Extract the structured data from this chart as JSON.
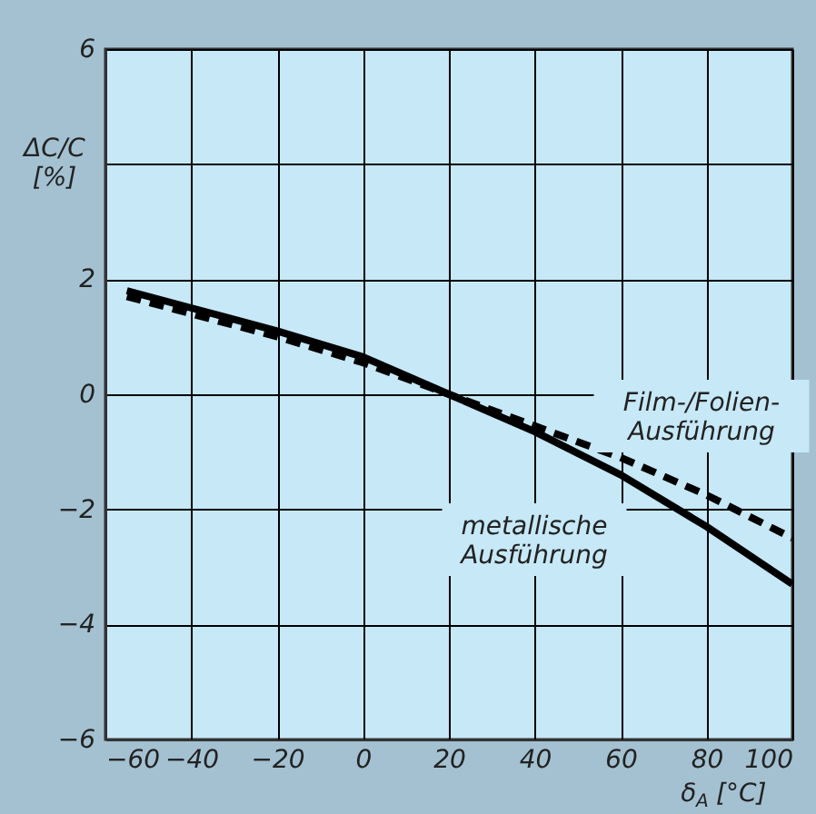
{
  "chart_data": {
    "type": "line",
    "xlabel": "δ$_{A}$ [°C]",
    "ylabel": "ΔC/C [%]",
    "x": [
      -55,
      -40,
      -20,
      0,
      20,
      40,
      60,
      80,
      100
    ],
    "series": [
      {
        "name": "metallische\nAusführung",
        "color": "#000000",
        "line_style": "solid",
        "values": [
          1.8,
          1.5,
          1.1,
          0.65,
          0.0,
          -0.65,
          -1.4,
          -2.3,
          -3.3
        ]
      },
      {
        "name": "Film-/Folien-\nAusführung",
        "color": "#000000",
        "line_style": "dashed",
        "values": [
          1.7,
          1.4,
          1.0,
          0.55,
          0.0,
          -0.55,
          -1.1,
          -1.75,
          -2.5
        ]
      }
    ],
    "xlim": [
      -60,
      100
    ],
    "xticks": [
      -60,
      -40,
      -20,
      0,
      20,
      40,
      60,
      80,
      100
    ],
    "ylim": [
      -6,
      6
    ],
    "yticks": [
      -6,
      -4,
      -2,
      0,
      2,
      {
        "value": 4,
        "label": null
      },
      6
    ],
    "grid": true,
    "legend": false
  }
}
